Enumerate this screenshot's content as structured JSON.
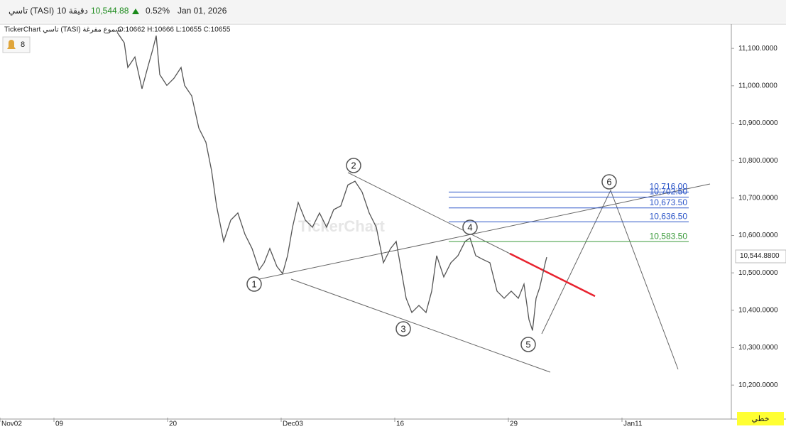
{
  "header": {
    "symbol": "تاسي (TASI)",
    "interval": "10 دقيقة",
    "price": "10,544.88",
    "change": "0.52%",
    "date": "Jan 01, 2026"
  },
  "chart_data": {
    "type": "line",
    "legend_text": "TickerChart تاسي (TASI) شموع مفرغة",
    "ohlc": "O:10662 H:10666 L:10655 C:10655",
    "alert_count": "8",
    "watermark": "TickerChart",
    "style_button": "خطي",
    "last_price": {
      "value": 10544.88,
      "label": "10,544.8800"
    },
    "xlim": [
      0,
      1030
    ],
    "ylim": [
      10113,
      11161
    ],
    "xticks": [
      {
        "value": 0,
        "label": "Nov02"
      },
      {
        "value": 76,
        "label": "09"
      },
      {
        "value": 236,
        "label": "20"
      },
      {
        "value": 396,
        "label": "Dec03"
      },
      {
        "value": 556,
        "label": "16"
      },
      {
        "value": 716,
        "label": "29"
      },
      {
        "value": 876,
        "label": "Jan11"
      }
    ],
    "yticks": [
      {
        "value": 11100,
        "label": "11,100.0000"
      },
      {
        "value": 11000,
        "label": "11,000.0000"
      },
      {
        "value": 10900,
        "label": "10,900.0000"
      },
      {
        "value": 10800,
        "label": "10,800.0000"
      },
      {
        "value": 10700,
        "label": "10,700.0000"
      },
      {
        "value": 10600,
        "label": "10,600.0000"
      },
      {
        "value": 10500,
        "label": "10,500.0000"
      },
      {
        "value": 10400,
        "label": "10,400.0000"
      },
      {
        "value": 10300,
        "label": "10,300.0000"
      },
      {
        "value": 10200,
        "label": "10,200.0000"
      }
    ],
    "x": [
      165,
      175,
      180,
      190,
      200,
      208,
      215,
      220,
      225,
      235,
      245,
      255,
      260,
      270,
      280,
      290,
      298,
      305,
      315,
      325,
      335,
      345,
      355,
      365,
      372,
      380,
      390,
      398,
      405,
      412,
      420,
      430,
      440,
      450,
      460,
      470,
      480,
      490,
      500,
      510,
      520,
      530,
      540,
      550,
      558,
      565,
      572,
      580,
      590,
      600,
      608,
      615,
      625,
      635,
      645,
      655,
      662,
      670,
      680,
      690,
      700,
      710,
      720,
      730,
      738,
      745,
      750,
      755,
      760,
      768,
      770
    ],
    "series": [
      {
        "color": "#555555",
        "values": [
          11143,
          11115,
          11049,
          11077,
          10992,
          11049,
          11096,
          11134,
          11030,
          11001,
          11020,
          11049,
          11001,
          10973,
          10887,
          10849,
          10773,
          10679,
          10584,
          10641,
          10660,
          10603,
          10565,
          10508,
          10527,
          10565,
          10517,
          10498,
          10546,
          10622,
          10688,
          10641,
          10622,
          10660,
          10622,
          10669,
          10679,
          10735,
          10745,
          10716,
          10660,
          10622,
          10527,
          10565,
          10584,
          10508,
          10432,
          10394,
          10413,
          10394,
          10451,
          10546,
          10489,
          10527,
          10546,
          10584,
          10593,
          10546,
          10536,
          10527,
          10451,
          10432,
          10451,
          10432,
          10470,
          10375,
          10346,
          10432,
          10460,
          10527,
          10542
        ]
      }
    ],
    "levels": [
      {
        "value": 10716,
        "label": "10,716.00",
        "color": "#2b55c8"
      },
      {
        "value": 10702.5,
        "label": "10,702.50",
        "color": "#2b55c8"
      },
      {
        "value": 10673.5,
        "label": "10,673.50",
        "color": "#2b55c8"
      },
      {
        "value": 10636.5,
        "label": "10,636.50",
        "color": "#2b55c8"
      },
      {
        "value": 10583.5,
        "label": "10,583.50",
        "color": "#3a9a3a"
      }
    ],
    "waves": [
      "1",
      "2",
      "3",
      "4",
      "5",
      "6"
    ]
  }
}
